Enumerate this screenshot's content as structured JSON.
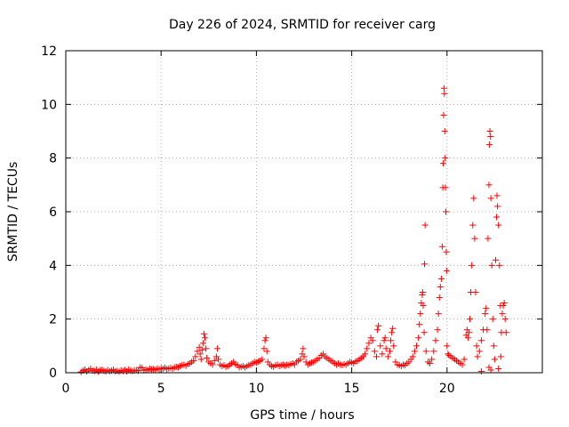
{
  "chart_data": {
    "type": "scatter",
    "title": "Day 226 of 2024, SRMTID for receiver carg",
    "xlabel": "GPS time / hours",
    "ylabel": "SRMTID / TECUs",
    "xlim": [
      0,
      25
    ],
    "ylim": [
      0,
      12
    ],
    "x_ticks": [
      0,
      5,
      10,
      15,
      20
    ],
    "y_ticks": [
      0,
      2,
      4,
      6,
      8,
      10,
      12
    ],
    "x_tick_labels": [
      "0",
      "5",
      "10",
      "15",
      "20"
    ],
    "y_tick_labels": [
      "0",
      "2",
      "4",
      "6",
      "8",
      "10",
      "12"
    ],
    "grid": true,
    "marker": "+",
    "series": [
      {
        "color": "#ff0000",
        "points": [
          [
            0.8,
            0.03
          ],
          [
            0.9,
            0.08
          ],
          [
            1.0,
            0.12
          ],
          [
            1.1,
            0.05
          ],
          [
            1.2,
            0.1
          ],
          [
            1.3,
            0.15
          ],
          [
            1.4,
            0.08
          ],
          [
            1.5,
            0.06
          ],
          [
            1.6,
            0.12
          ],
          [
            1.7,
            0.04
          ],
          [
            1.8,
            0.09
          ],
          [
            1.9,
            0.11
          ],
          [
            2.0,
            0.07
          ],
          [
            2.1,
            0.05
          ],
          [
            2.2,
            0.1
          ],
          [
            2.3,
            0.06
          ],
          [
            2.4,
            0.08
          ],
          [
            2.5,
            0.12
          ],
          [
            2.6,
            0.05
          ],
          [
            2.7,
            0.07
          ],
          [
            2.8,
            0.04
          ],
          [
            2.9,
            0.09
          ],
          [
            3.0,
            0.06
          ],
          [
            3.1,
            0.1
          ],
          [
            3.2,
            0.05
          ],
          [
            3.3,
            0.12
          ],
          [
            3.4,
            0.08
          ],
          [
            3.5,
            0.06
          ],
          [
            3.6,
            0.09
          ],
          [
            3.7,
            0.1
          ],
          [
            3.8,
            0.07
          ],
          [
            3.9,
            0.2
          ],
          [
            4.0,
            0.18
          ],
          [
            4.1,
            0.09
          ],
          [
            4.2,
            0.12
          ],
          [
            4.3,
            0.1
          ],
          [
            4.4,
            0.15
          ],
          [
            4.5,
            0.12
          ],
          [
            4.6,
            0.14
          ],
          [
            4.7,
            0.1
          ],
          [
            4.8,
            0.16
          ],
          [
            4.9,
            0.13
          ],
          [
            5.0,
            0.17
          ],
          [
            5.1,
            0.15
          ],
          [
            5.2,
            0.19
          ],
          [
            5.3,
            0.14
          ],
          [
            5.4,
            0.16
          ],
          [
            5.5,
            0.18
          ],
          [
            5.6,
            0.15
          ],
          [
            5.7,
            0.2
          ],
          [
            5.8,
            0.22
          ],
          [
            5.9,
            0.2
          ],
          [
            6.0,
            0.25
          ],
          [
            6.1,
            0.28
          ],
          [
            6.2,
            0.3
          ],
          [
            6.3,
            0.26
          ],
          [
            6.4,
            0.32
          ],
          [
            6.5,
            0.35
          ],
          [
            6.6,
            0.4
          ],
          [
            6.7,
            0.45
          ],
          [
            6.8,
            0.6
          ],
          [
            6.9,
            0.8
          ],
          [
            7.0,
            0.95
          ],
          [
            7.05,
            0.7
          ],
          [
            7.1,
            0.5
          ],
          [
            7.15,
            0.85
          ],
          [
            7.2,
            1.1
          ],
          [
            7.25,
            1.45
          ],
          [
            7.3,
            1.3
          ],
          [
            7.35,
            0.9
          ],
          [
            7.4,
            0.55
          ],
          [
            7.5,
            0.4
          ],
          [
            7.6,
            0.35
          ],
          [
            7.7,
            0.3
          ],
          [
            7.8,
            0.45
          ],
          [
            7.9,
            0.6
          ],
          [
            7.95,
            0.9
          ],
          [
            8.0,
            0.5
          ],
          [
            8.1,
            0.3
          ],
          [
            8.2,
            0.25
          ],
          [
            8.3,
            0.28
          ],
          [
            8.4,
            0.22
          ],
          [
            8.5,
            0.25
          ],
          [
            8.6,
            0.3
          ],
          [
            8.7,
            0.35
          ],
          [
            8.8,
            0.4
          ],
          [
            8.9,
            0.32
          ],
          [
            9.0,
            0.28
          ],
          [
            9.1,
            0.2
          ],
          [
            9.2,
            0.22
          ],
          [
            9.3,
            0.25
          ],
          [
            9.4,
            0.2
          ],
          [
            9.5,
            0.24
          ],
          [
            9.6,
            0.28
          ],
          [
            9.7,
            0.3
          ],
          [
            9.8,
            0.35
          ],
          [
            9.9,
            0.4
          ],
          [
            10.0,
            0.38
          ],
          [
            10.1,
            0.42
          ],
          [
            10.2,
            0.45
          ],
          [
            10.3,
            0.5
          ],
          [
            10.4,
            0.9
          ],
          [
            10.45,
            1.2
          ],
          [
            10.5,
            1.3
          ],
          [
            10.55,
            0.8
          ],
          [
            10.6,
            0.4
          ],
          [
            10.7,
            0.3
          ],
          [
            10.8,
            0.25
          ],
          [
            10.9,
            0.22
          ],
          [
            11.0,
            0.28
          ],
          [
            11.1,
            0.3
          ],
          [
            11.2,
            0.25
          ],
          [
            11.3,
            0.28
          ],
          [
            11.4,
            0.3
          ],
          [
            11.5,
            0.26
          ],
          [
            11.6,
            0.3
          ],
          [
            11.7,
            0.28
          ],
          [
            11.8,
            0.32
          ],
          [
            11.9,
            0.35
          ],
          [
            12.0,
            0.3
          ],
          [
            12.1,
            0.4
          ],
          [
            12.2,
            0.45
          ],
          [
            12.3,
            0.5
          ],
          [
            12.4,
            0.7
          ],
          [
            12.45,
            0.9
          ],
          [
            12.5,
            0.6
          ],
          [
            12.6,
            0.4
          ],
          [
            12.7,
            0.3
          ],
          [
            12.8,
            0.35
          ],
          [
            12.9,
            0.38
          ],
          [
            13.0,
            0.4
          ],
          [
            13.1,
            0.45
          ],
          [
            13.2,
            0.5
          ],
          [
            13.3,
            0.55
          ],
          [
            13.4,
            0.65
          ],
          [
            13.5,
            0.7
          ],
          [
            13.6,
            0.6
          ],
          [
            13.7,
            0.55
          ],
          [
            13.8,
            0.5
          ],
          [
            13.9,
            0.45
          ],
          [
            14.0,
            0.4
          ],
          [
            14.1,
            0.35
          ],
          [
            14.2,
            0.3
          ],
          [
            14.3,
            0.35
          ],
          [
            14.4,
            0.3
          ],
          [
            14.5,
            0.28
          ],
          [
            14.6,
            0.32
          ],
          [
            14.7,
            0.3
          ],
          [
            14.8,
            0.35
          ],
          [
            14.9,
            0.4
          ],
          [
            15.0,
            0.38
          ],
          [
            15.1,
            0.35
          ],
          [
            15.2,
            0.42
          ],
          [
            15.3,
            0.45
          ],
          [
            15.4,
            0.5
          ],
          [
            15.5,
            0.55
          ],
          [
            15.6,
            0.6
          ],
          [
            15.7,
            0.7
          ],
          [
            15.8,
            0.9
          ],
          [
            15.9,
            1.1
          ],
          [
            16.0,
            1.3
          ],
          [
            16.1,
            1.2
          ],
          [
            16.2,
            0.8
          ],
          [
            16.3,
            0.6
          ],
          [
            16.35,
            1.6
          ],
          [
            16.4,
            1.75
          ],
          [
            16.5,
            1.0
          ],
          [
            16.6,
            0.7
          ],
          [
            16.7,
            1.2
          ],
          [
            16.75,
            1.3
          ],
          [
            16.8,
            0.9
          ],
          [
            16.9,
            0.6
          ],
          [
            17.0,
            0.8
          ],
          [
            17.05,
            1.2
          ],
          [
            17.1,
            1.5
          ],
          [
            17.15,
            1.65
          ],
          [
            17.2,
            1.0
          ],
          [
            17.3,
            0.4
          ],
          [
            17.4,
            0.3
          ],
          [
            17.5,
            0.28
          ],
          [
            17.6,
            0.25
          ],
          [
            17.7,
            0.3
          ],
          [
            17.8,
            0.28
          ],
          [
            17.9,
            0.35
          ],
          [
            18.0,
            0.4
          ],
          [
            18.1,
            0.5
          ],
          [
            18.2,
            0.6
          ],
          [
            18.3,
            0.8
          ],
          [
            18.4,
            1.0
          ],
          [
            18.5,
            1.3
          ],
          [
            18.55,
            1.8
          ],
          [
            18.6,
            2.2
          ],
          [
            18.65,
            2.6
          ],
          [
            18.7,
            2.9
          ],
          [
            18.72,
            3.0
          ],
          [
            18.75,
            2.5
          ],
          [
            18.8,
            1.5
          ],
          [
            18.82,
            4.05
          ],
          [
            18.85,
            5.5
          ],
          [
            18.9,
            0.8
          ],
          [
            19.0,
            0.4
          ],
          [
            19.1,
            0.35
          ],
          [
            19.2,
            0.5
          ],
          [
            19.3,
            0.8
          ],
          [
            19.4,
            1.2
          ],
          [
            19.5,
            1.6
          ],
          [
            19.55,
            2.2
          ],
          [
            19.6,
            2.8
          ],
          [
            19.65,
            3.2
          ],
          [
            19.7,
            3.5
          ],
          [
            19.75,
            4.7
          ],
          [
            19.78,
            6.9
          ],
          [
            19.8,
            7.8
          ],
          [
            19.82,
            9.6
          ],
          [
            19.84,
            10.6
          ],
          [
            19.86,
            10.4
          ],
          [
            19.88,
            9.0
          ],
          [
            19.9,
            8.0
          ],
          [
            19.92,
            6.9
          ],
          [
            19.94,
            6.0
          ],
          [
            19.96,
            4.5
          ],
          [
            19.98,
            3.8
          ],
          [
            20.0,
            1.0
          ],
          [
            20.05,
            0.7
          ],
          [
            20.1,
            0.65
          ],
          [
            20.2,
            0.6
          ],
          [
            20.3,
            0.55
          ],
          [
            20.4,
            0.5
          ],
          [
            20.5,
            0.45
          ],
          [
            20.6,
            0.4
          ],
          [
            20.7,
            0.35
          ],
          [
            20.8,
            0.3
          ],
          [
            20.9,
            0.5
          ],
          [
            21.0,
            1.4
          ],
          [
            21.05,
            1.6
          ],
          [
            21.1,
            1.3
          ],
          [
            21.15,
            1.5
          ],
          [
            21.2,
            2.0
          ],
          [
            21.25,
            3.0
          ],
          [
            21.3,
            4.0
          ],
          [
            21.35,
            5.5
          ],
          [
            21.4,
            6.5
          ],
          [
            21.45,
            5.0
          ],
          [
            21.5,
            3.0
          ],
          [
            21.55,
            1.0
          ],
          [
            21.6,
            0.6
          ],
          [
            21.7,
            0.8
          ],
          [
            21.8,
            1.2
          ],
          [
            21.9,
            1.6
          ],
          [
            22.0,
            2.2
          ],
          [
            22.05,
            2.4
          ],
          [
            22.1,
            1.6
          ],
          [
            22.15,
            5.0
          ],
          [
            22.2,
            7.0
          ],
          [
            22.22,
            8.5
          ],
          [
            22.25,
            9.0
          ],
          [
            22.28,
            8.8
          ],
          [
            22.3,
            6.5
          ],
          [
            22.35,
            4.0
          ],
          [
            22.4,
            2.0
          ],
          [
            22.45,
            1.0
          ],
          [
            22.5,
            0.5
          ],
          [
            22.55,
            4.2
          ],
          [
            22.6,
            5.8
          ],
          [
            22.62,
            6.6
          ],
          [
            22.65,
            6.2
          ],
          [
            22.7,
            5.5
          ],
          [
            22.75,
            4.0
          ],
          [
            22.8,
            2.5
          ],
          [
            22.82,
            0.6
          ],
          [
            22.85,
            1.5
          ],
          [
            22.9,
            2.2
          ],
          [
            22.95,
            2.5
          ],
          [
            23.0,
            2.6
          ],
          [
            23.05,
            2.0
          ],
          [
            23.1,
            1.5
          ],
          [
            22.2,
            0.2
          ],
          [
            22.3,
            0.1
          ],
          [
            21.8,
            0.05
          ],
          [
            22.7,
            0.15
          ]
        ]
      }
    ]
  }
}
